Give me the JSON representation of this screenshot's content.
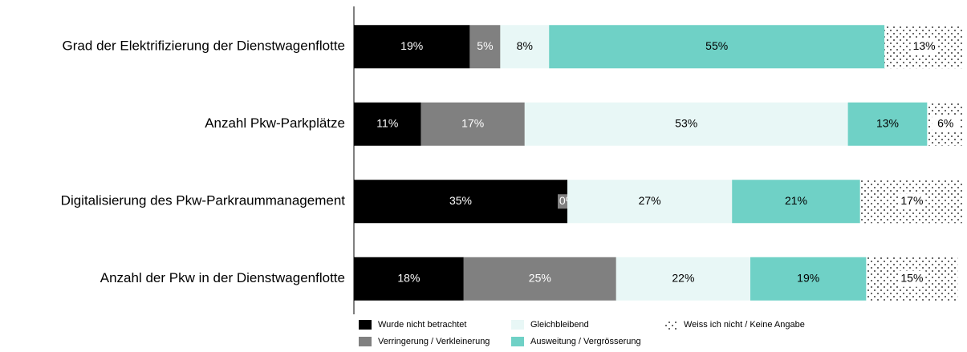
{
  "chart_data": {
    "type": "stacked-bar-horizontal",
    "categories": [
      "Grad der Elektrifizierung der Dienstwagenflotte",
      "Anzahl Pkw-Parkplätze",
      "Digitalisierung des Pkw-Parkraummanagement",
      "Anzahl der Pkw in der Dienstwagenflotte"
    ],
    "xlim": [
      0,
      100
    ],
    "series": [
      {
        "name": "Wurde nicht betrachtet",
        "color": "#000000",
        "values": [
          19,
          11,
          35,
          18
        ],
        "value_labels": [
          "19%",
          "11%",
          "35%",
          "18%"
        ]
      },
      {
        "name": "Verringerung / Verkleinerung",
        "color": "#808080",
        "values": [
          5,
          17,
          0,
          25
        ],
        "value_labels": [
          "5%",
          "17%",
          "0%",
          "25%"
        ]
      },
      {
        "name": "Gleichbleibend",
        "color": "#e8f7f6",
        "values": [
          8,
          53,
          27,
          22
        ],
        "value_labels": [
          "8%",
          "53%",
          "27%",
          "22%"
        ]
      },
      {
        "name": "Ausweitung / Vergrösserung",
        "color": "#6fd1c6",
        "values": [
          55,
          13,
          21,
          19
        ],
        "value_labels": [
          "55%",
          "13%",
          "21%",
          "19%"
        ]
      },
      {
        "name": "Weiss ich nicht / Keine Angabe",
        "color": "#ffffff",
        "pattern": "dots",
        "values": [
          13,
          6,
          17,
          15
        ],
        "value_labels": [
          "13%",
          "6%",
          "17%",
          "15%"
        ]
      }
    ]
  }
}
